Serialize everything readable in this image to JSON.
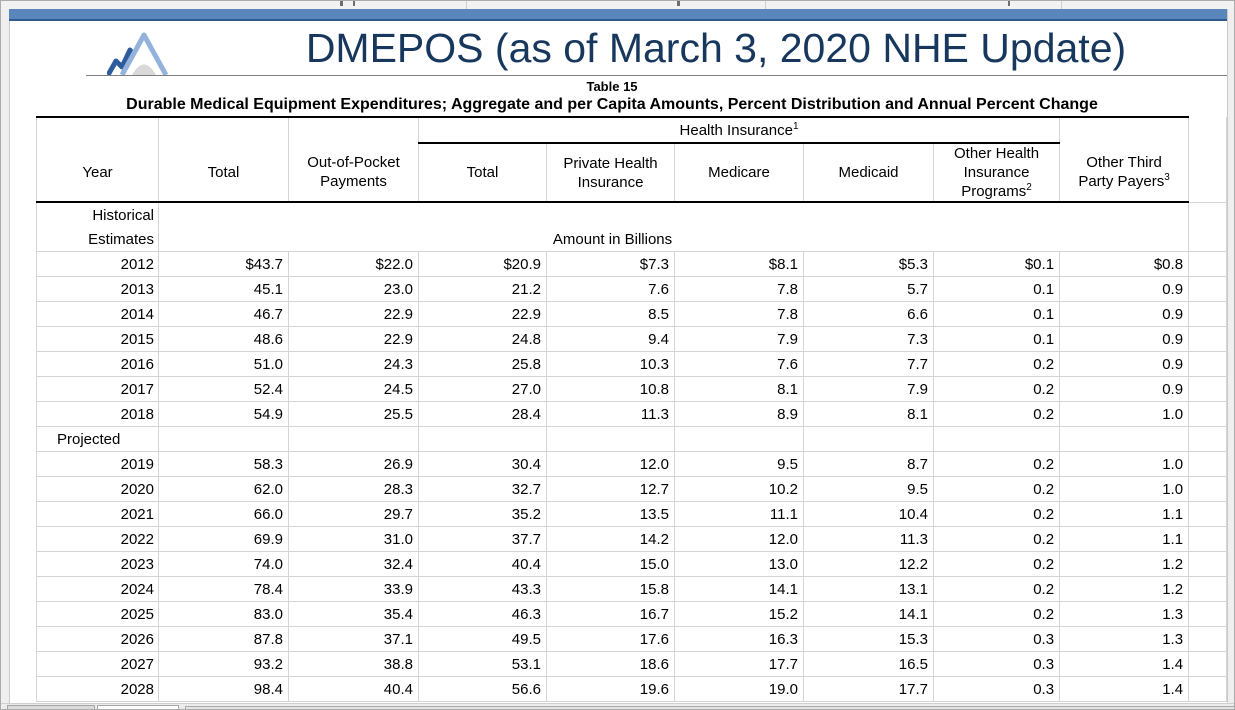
{
  "colors": {
    "accent_navy": "#17375D",
    "top_bar_blue": "#5B86BB",
    "logo_dark_blue": "#2E5B9B",
    "logo_light_blue": "#93B3DC",
    "logo_gray": "#D9D9D9",
    "gridline": "#D4D4D4"
  },
  "header": {
    "title": "DMEPOS (as of March 3, 2020 NHE Update)"
  },
  "table": {
    "caption": "Table 15",
    "subtitle": "Durable Medical Equipment Expenditures; Aggregate and per Capita Amounts, Percent Distribution and Annual Percent Change",
    "group_header": {
      "label": "Health Insurance",
      "footnote": "1"
    },
    "columns": [
      {
        "lines": [
          "Year"
        ]
      },
      {
        "lines": [
          "Total"
        ]
      },
      {
        "lines": [
          "Out-of-Pocket",
          "Payments"
        ]
      },
      {
        "lines": [
          "Total"
        ]
      },
      {
        "lines": [
          "Private Health",
          "Insurance"
        ]
      },
      {
        "lines": [
          "Medicare"
        ]
      },
      {
        "lines": [
          "Medicaid"
        ]
      },
      {
        "lines": [
          "Other Health",
          "Insurance",
          "Programs"
        ],
        "footnote": "2"
      },
      {
        "lines": [
          "Other Third",
          "Party Payers"
        ],
        "footnote": "3"
      }
    ],
    "sections": [
      {
        "label_lines": [
          "Historical",
          "Estimates"
        ],
        "unit_label": "Amount in Billions",
        "rows": [
          {
            "year": "2012",
            "values": [
              "$43.7",
              "$22.0",
              "$20.9",
              "$7.3",
              "$8.1",
              "$5.3",
              "$0.1",
              "$0.8"
            ]
          },
          {
            "year": "2013",
            "values": [
              "45.1",
              "23.0",
              "21.2",
              "7.6",
              "7.8",
              "5.7",
              "0.1",
              "0.9"
            ]
          },
          {
            "year": "2014",
            "values": [
              "46.7",
              "22.9",
              "22.9",
              "8.5",
              "7.8",
              "6.6",
              "0.1",
              "0.9"
            ]
          },
          {
            "year": "2015",
            "values": [
              "48.6",
              "22.9",
              "24.8",
              "9.4",
              "7.9",
              "7.3",
              "0.1",
              "0.9"
            ]
          },
          {
            "year": "2016",
            "values": [
              "51.0",
              "24.3",
              "25.8",
              "10.3",
              "7.6",
              "7.7",
              "0.2",
              "0.9"
            ]
          },
          {
            "year": "2017",
            "values": [
              "52.4",
              "24.5",
              "27.0",
              "10.8",
              "8.1",
              "7.9",
              "0.2",
              "0.9"
            ]
          },
          {
            "year": "2018",
            "values": [
              "54.9",
              "25.5",
              "28.4",
              "11.3",
              "8.9",
              "8.1",
              "0.2",
              "1.0"
            ]
          }
        ]
      },
      {
        "label_lines": [
          "Projected"
        ],
        "rows": [
          {
            "year": "2019",
            "values": [
              "58.3",
              "26.9",
              "30.4",
              "12.0",
              "9.5",
              "8.7",
              "0.2",
              "1.0"
            ]
          },
          {
            "year": "2020",
            "values": [
              "62.0",
              "28.3",
              "32.7",
              "12.7",
              "10.2",
              "9.5",
              "0.2",
              "1.0"
            ]
          },
          {
            "year": "2021",
            "values": [
              "66.0",
              "29.7",
              "35.2",
              "13.5",
              "11.1",
              "10.4",
              "0.2",
              "1.1"
            ]
          },
          {
            "year": "2022",
            "values": [
              "69.9",
              "31.0",
              "37.7",
              "14.2",
              "12.0",
              "11.3",
              "0.2",
              "1.1"
            ]
          },
          {
            "year": "2023",
            "values": [
              "74.0",
              "32.4",
              "40.4",
              "15.0",
              "13.0",
              "12.2",
              "0.2",
              "1.2"
            ]
          },
          {
            "year": "2024",
            "values": [
              "78.4",
              "33.9",
              "43.3",
              "15.8",
              "14.1",
              "13.1",
              "0.2",
              "1.2"
            ]
          },
          {
            "year": "2025",
            "values": [
              "83.0",
              "35.4",
              "46.3",
              "16.7",
              "15.2",
              "14.1",
              "0.2",
              "1.3"
            ]
          },
          {
            "year": "2026",
            "values": [
              "87.8",
              "37.1",
              "49.5",
              "17.6",
              "16.3",
              "15.3",
              "0.3",
              "1.3"
            ]
          },
          {
            "year": "2027",
            "values": [
              "93.2",
              "38.8",
              "53.1",
              "18.6",
              "17.7",
              "16.5",
              "0.3",
              "1.4"
            ]
          },
          {
            "year": "2028",
            "values": [
              "98.4",
              "40.4",
              "56.6",
              "19.6",
              "19.0",
              "17.7",
              "0.3",
              "1.4"
            ]
          }
        ]
      }
    ]
  }
}
